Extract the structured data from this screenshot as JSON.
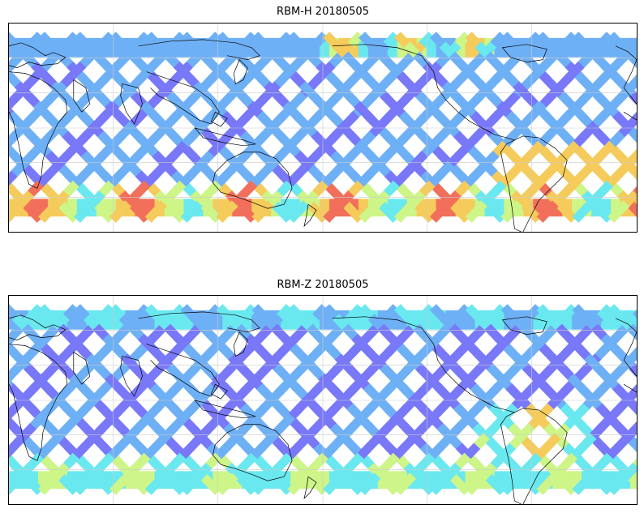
{
  "panels": [
    {
      "title": "RBM-H 20180505",
      "variant": "RBM-H"
    },
    {
      "title": "RBM-Z 20180505",
      "variant": "RBM-Z"
    }
  ],
  "colors": {
    "low": "#6a6af8",
    "low_mid": "#5fa8f4",
    "mid": "#5ae6ee",
    "mid_high": "#c8f47c",
    "high": "#f5c64a",
    "very_high": "#f0604a",
    "coastline": "#000000",
    "grid": "#cccccc"
  }
}
